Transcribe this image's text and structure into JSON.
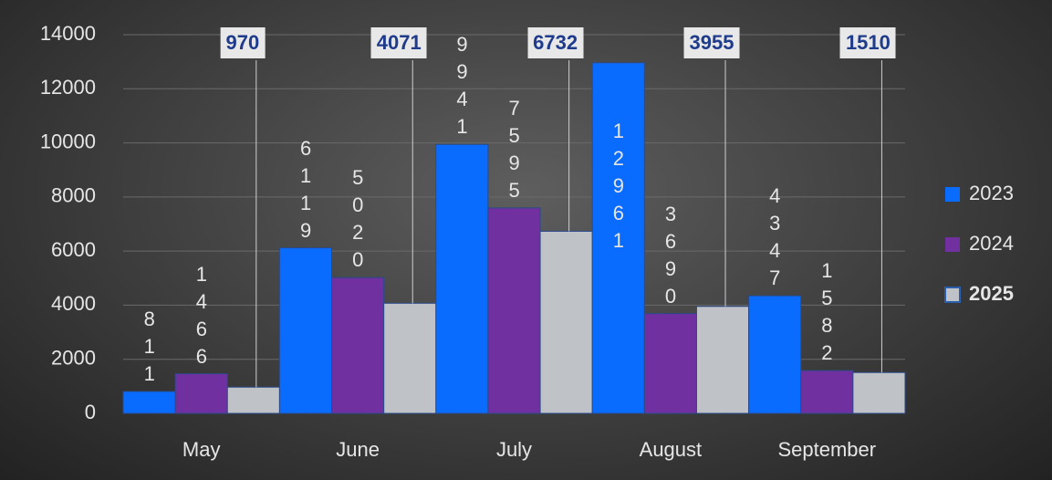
{
  "chart_data": {
    "type": "bar",
    "categories": [
      "May",
      "June",
      "July",
      "August",
      "September"
    ],
    "series": [
      {
        "name": "2023",
        "color": "#0a6cff",
        "values": [
          811,
          6119,
          9941,
          12961,
          4347
        ]
      },
      {
        "name": "2024",
        "color": "#7030a0",
        "values": [
          1466,
          5020,
          7595,
          3690,
          1582
        ]
      },
      {
        "name": "2025",
        "color": "#bfc3c7",
        "values": [
          970,
          4071,
          6732,
          3955,
          1510
        ]
      }
    ],
    "ylim": [
      0,
      14000
    ],
    "yticks": [
      0,
      2000,
      4000,
      6000,
      8000,
      10000,
      12000,
      14000
    ],
    "grid": true,
    "legend": "right"
  }
}
